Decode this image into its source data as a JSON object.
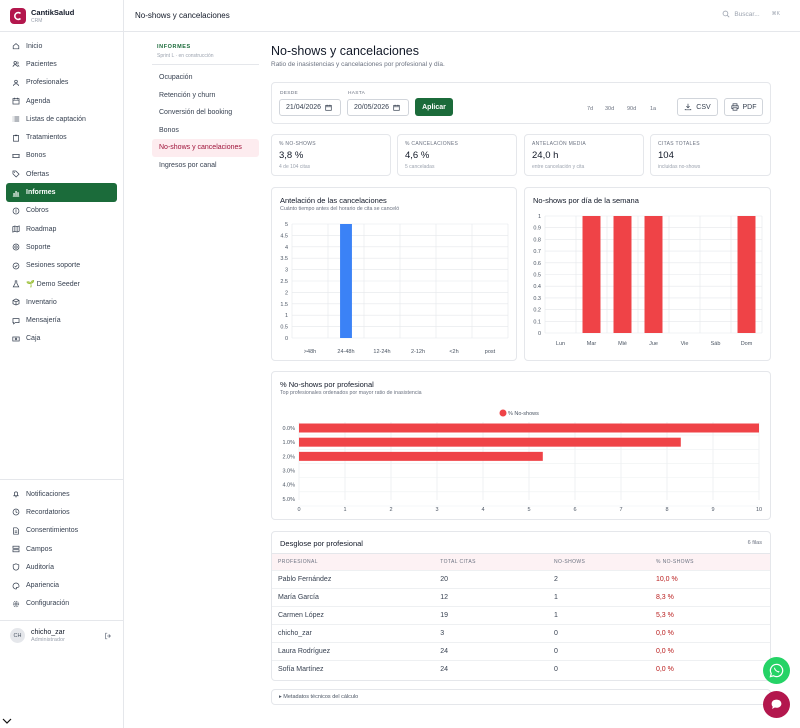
{
  "app": {
    "name": "CantikSalud",
    "sub": "CRM"
  },
  "nav_top": [
    {
      "label": "Inicio",
      "icon": "home-icon"
    },
    {
      "label": "Pacientes",
      "icon": "users-icon"
    },
    {
      "label": "Profesionales",
      "icon": "user-group-icon"
    },
    {
      "label": "Agenda",
      "icon": "calendar-icon"
    },
    {
      "label": "Listas de captación",
      "icon": "list-icon"
    },
    {
      "label": "Tratamientos",
      "icon": "clipboard-icon"
    },
    {
      "label": "Bonos",
      "icon": "ticket-icon"
    },
    {
      "label": "Ofertas",
      "icon": "tag-icon"
    },
    {
      "label": "Informes",
      "icon": "chart-icon",
      "active": true
    },
    {
      "label": "Cobros",
      "icon": "coin-icon"
    },
    {
      "label": "Roadmap",
      "icon": "map-icon"
    },
    {
      "label": "Soporte",
      "icon": "support-icon"
    },
    {
      "label": "Sesiones soporte",
      "icon": "sessions-icon"
    },
    {
      "label": "🌱 Demo Seeder",
      "icon": "flask-icon"
    },
    {
      "label": "Inventario",
      "icon": "box-icon"
    },
    {
      "label": "Mensajería",
      "icon": "chat-icon"
    },
    {
      "label": "Caja",
      "icon": "cash-icon"
    }
  ],
  "nav_bottom": [
    {
      "label": "Notificaciones",
      "icon": "bell-icon"
    },
    {
      "label": "Recordatorios",
      "icon": "clock-icon"
    },
    {
      "label": "Consentimientos",
      "icon": "doc-icon"
    },
    {
      "label": "Campos",
      "icon": "fields-icon"
    },
    {
      "label": "Auditoría",
      "icon": "shield-icon"
    },
    {
      "label": "Apariencia",
      "icon": "palette-icon"
    },
    {
      "label": "Configuración",
      "icon": "gear-icon"
    }
  ],
  "user": {
    "initials": "CH",
    "name": "chicho_zar",
    "role": "Administrador"
  },
  "topbar": {
    "title": "No-shows y cancelaciones",
    "search_placeholder": "Buscar...",
    "shortcut": "⌘K"
  },
  "subnav": {
    "title": "INFORMES",
    "subtitle": "Sprint L · en construcción",
    "items": [
      "Ocupación",
      "Retención y churn",
      "Conversión del booking",
      "Bonos",
      "No-shows y cancelaciones",
      "Ingresos por canal"
    ],
    "active_index": 4
  },
  "page": {
    "title": "No-shows y cancelaciones",
    "description": "Ratio de inasistencias y cancelaciones por profesional y día."
  },
  "filters": {
    "from_label": "DESDE",
    "from_value": "21/04/2026",
    "to_label": "HASTA",
    "to_value": "20/05/2026",
    "apply_label": "Aplicar",
    "ranges": [
      "7d",
      "30d",
      "90d",
      "1a"
    ],
    "csv_label": "CSV",
    "pdf_label": "PDF"
  },
  "kpis": [
    {
      "label": "% NO-SHOWS",
      "value": "3,8 %",
      "sub": "4 de 104 citas"
    },
    {
      "label": "% CANCELACIONES",
      "value": "4,6 %",
      "sub": "5 canceladas"
    },
    {
      "label": "ANTELACIÓN MEDIA",
      "value": "24,0 h",
      "sub": "entre cancelación y cita"
    },
    {
      "label": "CITAS TOTALES",
      "value": "104",
      "sub": "incluidas no-shows"
    }
  ],
  "colors": {
    "primary": "#1b6b3a",
    "blue": "#3b82f6",
    "red": "#ef4347",
    "brand": "#b3174d"
  },
  "chart_data": [
    {
      "type": "bar",
      "title": "Antelación de las cancelaciones",
      "subtitle": "Cuánto tiempo antes del horario de cita se canceló",
      "categories": [
        ">48h",
        "24-48h",
        "12-24h",
        "2-12h",
        "<2h",
        "post"
      ],
      "values": [
        0,
        5,
        0,
        0,
        0,
        0
      ],
      "ylim": [
        0,
        5
      ],
      "yticks": [
        "0",
        "0.5",
        "1",
        "1.5",
        "2",
        "2.5",
        "3",
        "3.5",
        "4",
        "4.5",
        "5"
      ],
      "color": "#3b82f6",
      "grid": true
    },
    {
      "type": "bar",
      "title": "No-shows por día de la semana",
      "categories": [
        "Lun",
        "Mar",
        "Mié",
        "Jue",
        "Vie",
        "Sáb",
        "Dom"
      ],
      "values": [
        0,
        1,
        1,
        1,
        0,
        0,
        1
      ],
      "ylim": [
        0,
        1
      ],
      "yticks": [
        "0",
        "0.1",
        "0.2",
        "0.3",
        "0.4",
        "0.5",
        "0.6",
        "0.7",
        "0.8",
        "0.9",
        "1"
      ],
      "color": "#ef4347",
      "grid": true
    },
    {
      "type": "bar",
      "orientation": "horizontal",
      "title": "% No-shows por profesional",
      "subtitle": "Top profesionales ordenados por mayor ratio de inasistencia",
      "legend": "% No-shows",
      "legend_position": "top-center",
      "categories": [
        "0.0%",
        "1.0%",
        "2.0%",
        "3.0%",
        "4.0%",
        "5.0%"
      ],
      "values": [
        10,
        8.3,
        5.3,
        0,
        0,
        0
      ],
      "xlim": [
        0,
        10
      ],
      "xticks": [
        "0",
        "1",
        "2",
        "3",
        "4",
        "5",
        "6",
        "7",
        "8",
        "9",
        "10"
      ],
      "color": "#ef4347",
      "grid": true
    }
  ],
  "table": {
    "title": "Desglose por profesional",
    "count": "6 filas",
    "headers": [
      "PROFESIONAL",
      "TOTAL CITAS",
      "NO-SHOWS",
      "% NO-SHOWS"
    ],
    "rows": [
      [
        "Pablo Fernández",
        "20",
        "2",
        "10,0 %"
      ],
      [
        "María García",
        "12",
        "1",
        "8,3 %"
      ],
      [
        "Carmen López",
        "19",
        "1",
        "5,3 %"
      ],
      [
        "chicho_zar",
        "3",
        "0",
        "0,0 %"
      ],
      [
        "Laura Rodríguez",
        "24",
        "0",
        "0,0 %"
      ],
      [
        "Sofía Martínez",
        "24",
        "0",
        "0,0 %"
      ]
    ]
  },
  "meta_label": "▸ Metadatos técnicos del cálculo"
}
